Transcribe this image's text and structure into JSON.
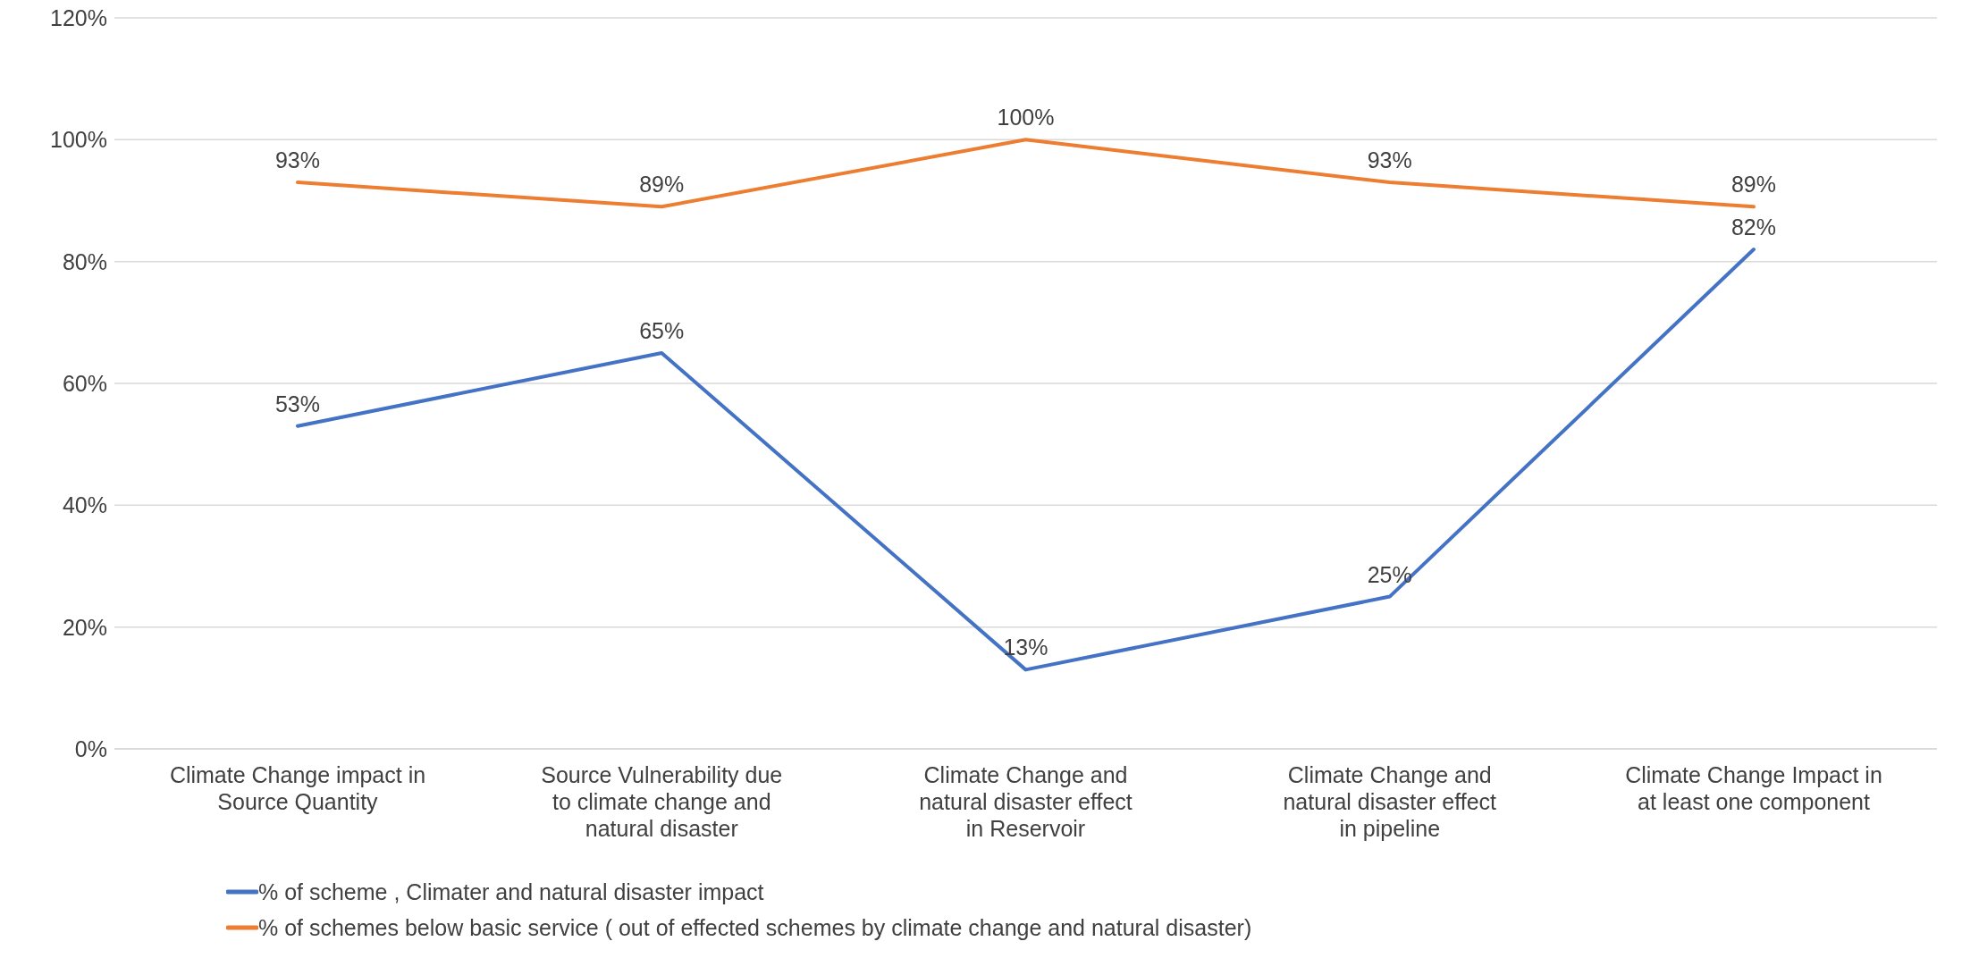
{
  "chart_data": {
    "type": "line",
    "categories": [
      "Climate Change impact in Source Quantity",
      "Source Vulnerability due to climate change and natural disaster",
      "Climate Change and natural disaster effect in Reservoir",
      "Climate Change and natural disaster effect in pipeline",
      "Climate Change Impact in at least  one component"
    ],
    "series": [
      {
        "name": "% of scheme , Climater and natural disaster impact",
        "color": "#4472c4",
        "values": [
          53,
          65,
          13,
          25,
          82
        ],
        "value_labels": [
          "53%",
          "65%",
          "13%",
          "25%",
          "82%"
        ]
      },
      {
        "name": "% of schemes below basic service ( out of effected schemes by climate change and natural disaster)",
        "color": "#ed7d31",
        "values": [
          93,
          89,
          100,
          93,
          89
        ],
        "value_labels": [
          "93%",
          "89%",
          "100%",
          "93%",
          "89%"
        ]
      }
    ],
    "ylim": [
      0,
      120
    ],
    "yticks": [
      {
        "value": 0,
        "label": "0%"
      },
      {
        "value": 20,
        "label": "20%"
      },
      {
        "value": 40,
        "label": "40%"
      },
      {
        "value": 60,
        "label": "60%"
      },
      {
        "value": 80,
        "label": "80%"
      },
      {
        "value": 100,
        "label": "100%"
      },
      {
        "value": 120,
        "label": "120%"
      }
    ],
    "grid": "y",
    "legend": "bottom",
    "marker": "none",
    "line_style": "solid"
  }
}
